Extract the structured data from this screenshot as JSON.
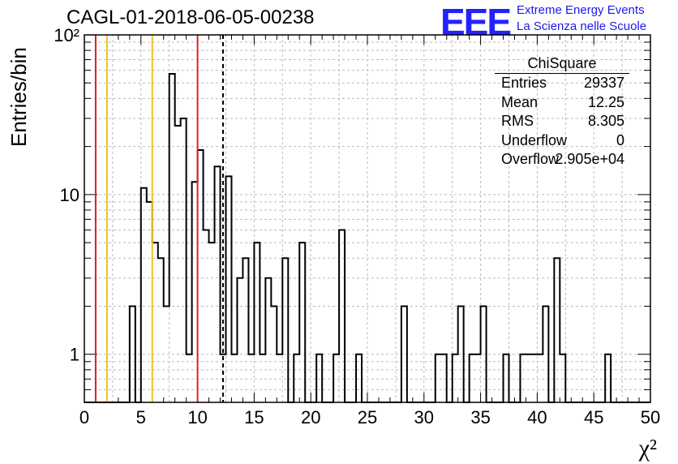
{
  "header": {
    "title": "CAGL-01-2018-06-05-00238",
    "logo_text": "EEE",
    "logo_line1": "Extreme Energy Events",
    "logo_line2": "La Scienza nelle Scuole"
  },
  "stats": {
    "name": "ChiSquare",
    "rows": [
      {
        "label": "Entries",
        "value": "29337"
      },
      {
        "label": "Mean",
        "value": "12.25"
      },
      {
        "label": "RMS",
        "value": "8.305"
      },
      {
        "label": "Underflow",
        "value": "0"
      },
      {
        "label": "Overflow",
        "value": "2.905e+04"
      }
    ]
  },
  "chart_data": {
    "type": "histogram",
    "title": "CAGL-01-2018-06-05-00238",
    "xlabel": "χ²",
    "ylabel": "Entries/bin",
    "xlim": [
      0,
      50
    ],
    "ylim": [
      0.5,
      100
    ],
    "yscale": "log",
    "bin_width": 0.5,
    "bins": [
      {
        "x": 4.0,
        "y": 2
      },
      {
        "x": 5.0,
        "y": 11
      },
      {
        "x": 5.5,
        "y": 9
      },
      {
        "x": 6.0,
        "y": 5
      },
      {
        "x": 6.5,
        "y": 4
      },
      {
        "x": 7.0,
        "y": 2
      },
      {
        "x": 7.5,
        "y": 57
      },
      {
        "x": 8.0,
        "y": 27
      },
      {
        "x": 8.5,
        "y": 30
      },
      {
        "x": 9.0,
        "y": 1
      },
      {
        "x": 9.5,
        "y": 12
      },
      {
        "x": 10.0,
        "y": 19
      },
      {
        "x": 10.5,
        "y": 6
      },
      {
        "x": 11.0,
        "y": 5
      },
      {
        "x": 11.5,
        "y": 15
      },
      {
        "x": 12.0,
        "y": 1
      },
      {
        "x": 12.5,
        "y": 13
      },
      {
        "x": 13.0,
        "y": 1
      },
      {
        "x": 13.5,
        "y": 3
      },
      {
        "x": 14.0,
        "y": 4
      },
      {
        "x": 14.5,
        "y": 1
      },
      {
        "x": 15.0,
        "y": 5
      },
      {
        "x": 15.5,
        "y": 1
      },
      {
        "x": 16.0,
        "y": 3
      },
      {
        "x": 16.5,
        "y": 2
      },
      {
        "x": 17.0,
        "y": 1
      },
      {
        "x": 17.5,
        "y": 4
      },
      {
        "x": 18.5,
        "y": 1
      },
      {
        "x": 19.0,
        "y": 5
      },
      {
        "x": 20.5,
        "y": 1
      },
      {
        "x": 22.0,
        "y": 1
      },
      {
        "x": 22.5,
        "y": 6
      },
      {
        "x": 24.0,
        "y": 1
      },
      {
        "x": 28.0,
        "y": 2
      },
      {
        "x": 31.0,
        "y": 1
      },
      {
        "x": 31.5,
        "y": 1
      },
      {
        "x": 32.5,
        "y": 1
      },
      {
        "x": 33.0,
        "y": 2
      },
      {
        "x": 34.0,
        "y": 1
      },
      {
        "x": 34.5,
        "y": 1
      },
      {
        "x": 35.0,
        "y": 2
      },
      {
        "x": 37.0,
        "y": 1
      },
      {
        "x": 38.5,
        "y": 1
      },
      {
        "x": 39.0,
        "y": 1
      },
      {
        "x": 39.5,
        "y": 1
      },
      {
        "x": 40.0,
        "y": 1
      },
      {
        "x": 40.5,
        "y": 2
      },
      {
        "x": 41.5,
        "y": 4
      },
      {
        "x": 42.0,
        "y": 1
      },
      {
        "x": 46.0,
        "y": 1
      }
    ],
    "vlines": [
      {
        "x": 1.0,
        "color": "#dd2222",
        "style": "solid"
      },
      {
        "x": 2.0,
        "color": "#f0c020",
        "style": "solid"
      },
      {
        "x": 6.0,
        "color": "#f0c020",
        "style": "solid"
      },
      {
        "x": 10.0,
        "color": "#dd2222",
        "style": "solid"
      },
      {
        "x": 12.25,
        "color": "#000000",
        "style": "dashed"
      }
    ],
    "xticks": [
      0,
      5,
      10,
      15,
      20,
      25,
      30,
      35,
      40,
      45,
      50
    ],
    "ytick_labels": [
      {
        "value": 1,
        "label": "1"
      },
      {
        "value": 10,
        "label": "10"
      },
      {
        "value": 100,
        "label": "10²"
      }
    ],
    "grid": true
  }
}
